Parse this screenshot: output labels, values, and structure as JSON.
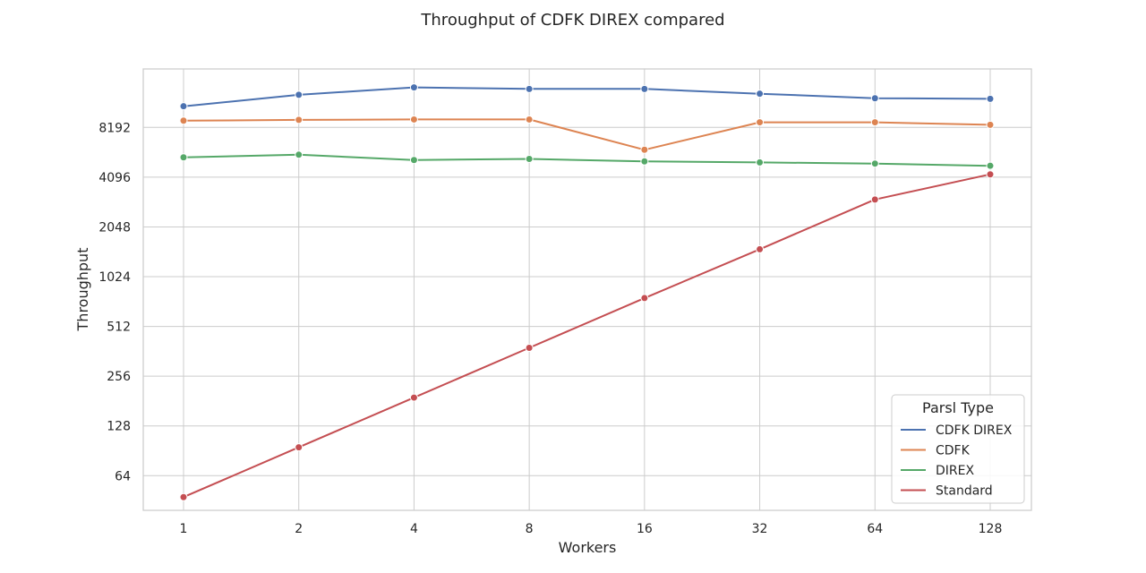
{
  "chart_data": {
    "type": "line",
    "title": "Throughput of CDFK DIREX compared",
    "xlabel": "Workers",
    "ylabel": "Throughput",
    "x_scale": "categorical",
    "y_scale": "log2",
    "categories": [
      "1",
      "2",
      "4",
      "8",
      "16",
      "32",
      "64",
      "128"
    ],
    "yticks": [
      64,
      128,
      256,
      512,
      1024,
      2048,
      4096,
      8192
    ],
    "ylim": [
      39.5,
      18500
    ],
    "grid": true,
    "legend": {
      "title": "Parsl Type",
      "position": "lower-right"
    },
    "series": [
      {
        "name": "CDFK DIREX",
        "color": "#4c72b0",
        "values": [
          11000,
          12900,
          14300,
          14000,
          14000,
          13100,
          12300,
          12200
        ]
      },
      {
        "name": "CDFK",
        "color": "#dd8452",
        "values": [
          9000,
          9100,
          9150,
          9150,
          6000,
          8800,
          8800,
          8500
        ]
      },
      {
        "name": "DIREX",
        "color": "#55a868",
        "values": [
          5400,
          5600,
          5200,
          5280,
          5100,
          5030,
          4950,
          4800
        ]
      },
      {
        "name": "Standard",
        "color": "#c44e52",
        "values": [
          47.5,
          95,
          190,
          380,
          760,
          1500,
          3000,
          4260
        ]
      }
    ]
  }
}
